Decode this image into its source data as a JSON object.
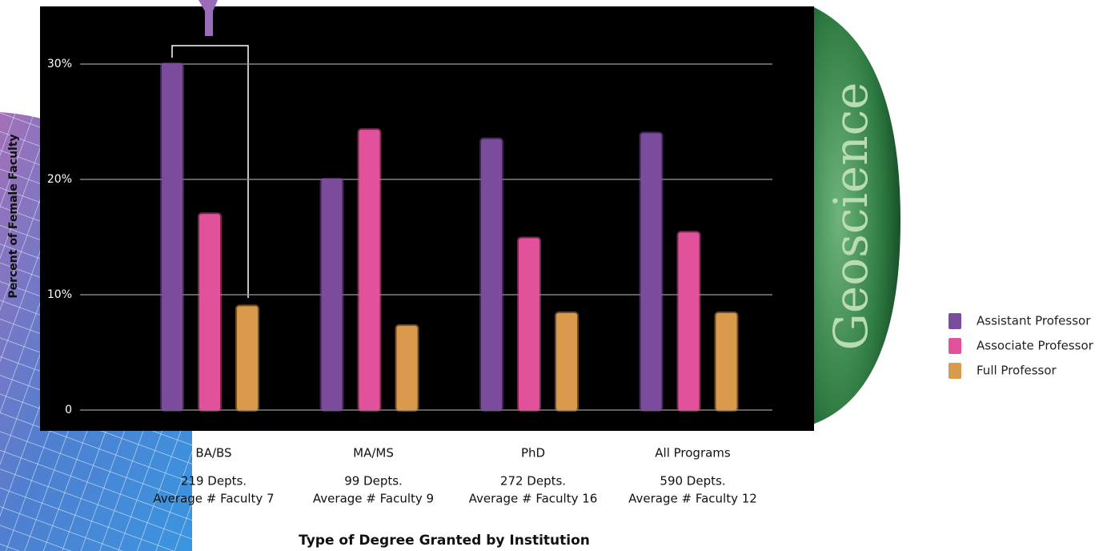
{
  "chart_data": {
    "type": "bar",
    "y_label": "Percent of Female Faculty",
    "x_label": "Type of Degree Granted by Institution",
    "annotation": "Geoscience",
    "categories": [
      "BA/BS",
      "MA/MS",
      "PhD",
      "All Programs"
    ],
    "category_details": [
      [
        "219 Depts.",
        "Average # Faculty 7"
      ],
      [
        "99 Depts.",
        "Average # Faculty 9"
      ],
      [
        "272 Depts.",
        "Average # Faculty 16"
      ],
      [
        "590 Depts.",
        "Average # Faculty 12"
      ]
    ],
    "series": [
      {
        "name": "Assistant Professor",
        "color": "#7b4b9e",
        "values": [
          30,
          20,
          23.5,
          24
        ]
      },
      {
        "name": "Associate Professor",
        "color": "#e2529c",
        "values": [
          17,
          24.3,
          14.9,
          15.4
        ]
      },
      {
        "name": "Full Professor",
        "color": "#d99a4b",
        "values": [
          9,
          7.3,
          8.4,
          8.4
        ]
      }
    ],
    "ylim": [
      0,
      35
    ],
    "yticks": [
      0,
      {
        "value": 10,
        "label": "10%"
      },
      {
        "value": 20,
        "label": "20%"
      },
      {
        "value": 30,
        "label": "30%"
      }
    ],
    "grid": true,
    "legend": "right"
  }
}
